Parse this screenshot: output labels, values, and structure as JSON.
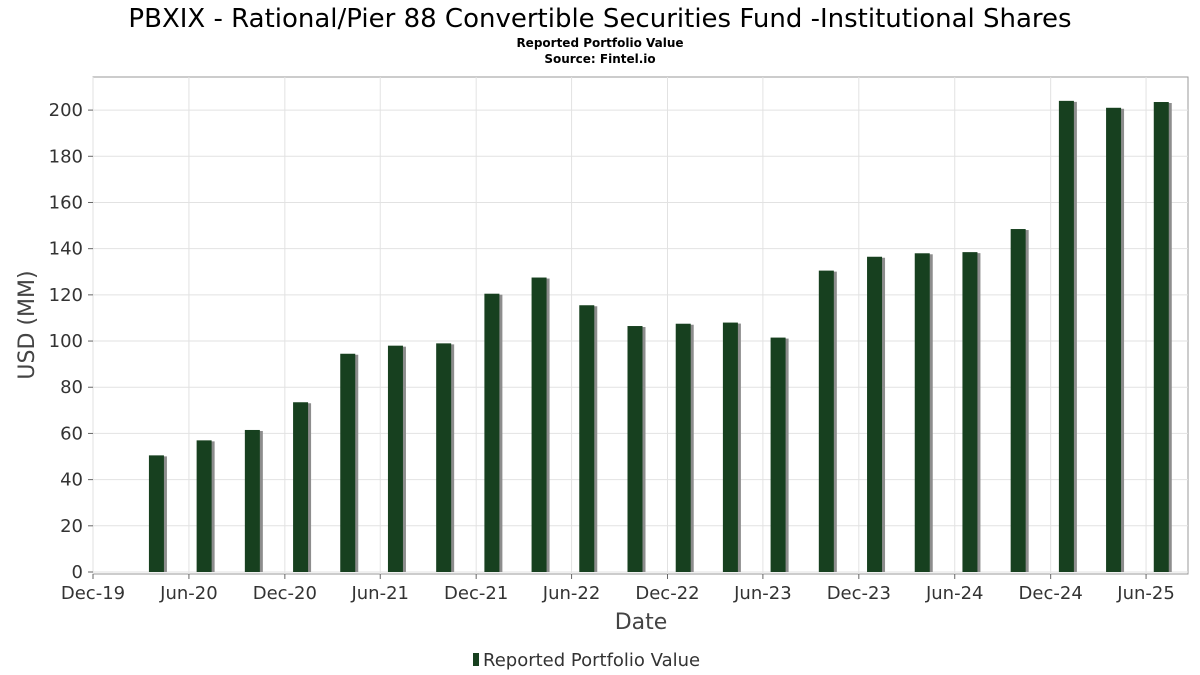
{
  "chart_data": {
    "type": "bar",
    "title": "PBXIX - Rational/Pier 88 Convertible Securities Fund -Institutional Shares",
    "subtitle": "Reported Portfolio Value",
    "source": "Source: Fintel.io",
    "xlabel": "Date",
    "ylabel": "USD (MM)",
    "ylim": [
      0,
      210
    ],
    "yticks": [
      0,
      20,
      40,
      60,
      80,
      100,
      120,
      140,
      160,
      180,
      200
    ],
    "xlim": [
      "2019-12-01",
      "2025-08-20"
    ],
    "xticks": [
      {
        "label": "Dec-19",
        "date": "2019-12-01"
      },
      {
        "label": "Jun-20",
        "date": "2020-06-01"
      },
      {
        "label": "Dec-20",
        "date": "2020-12-01"
      },
      {
        "label": "Jun-21",
        "date": "2021-06-01"
      },
      {
        "label": "Dec-21",
        "date": "2021-12-01"
      },
      {
        "label": "Jun-22",
        "date": "2022-06-01"
      },
      {
        "label": "Dec-22",
        "date": "2022-12-01"
      },
      {
        "label": "Jun-23",
        "date": "2023-06-01"
      },
      {
        "label": "Dec-23",
        "date": "2023-12-01"
      },
      {
        "label": "Jun-24",
        "date": "2024-06-01"
      },
      {
        "label": "Dec-24",
        "date": "2024-12-01"
      },
      {
        "label": "Jun-25",
        "date": "2025-06-01"
      }
    ],
    "grid": true,
    "legend_position": "bottom-center",
    "series": [
      {
        "name": "Reported Portfolio Value",
        "color": "#17401f",
        "points": [
          {
            "date": "2020-03-31",
            "value": 50.5
          },
          {
            "date": "2020-06-30",
            "value": 57.0
          },
          {
            "date": "2020-09-30",
            "value": 61.5
          },
          {
            "date": "2020-12-31",
            "value": 73.5
          },
          {
            "date": "2021-03-31",
            "value": 94.5
          },
          {
            "date": "2021-06-30",
            "value": 98.0
          },
          {
            "date": "2021-09-30",
            "value": 99.0
          },
          {
            "date": "2021-12-31",
            "value": 120.5
          },
          {
            "date": "2022-03-31",
            "value": 127.5
          },
          {
            "date": "2022-06-30",
            "value": 115.5
          },
          {
            "date": "2022-09-30",
            "value": 106.5
          },
          {
            "date": "2022-12-31",
            "value": 107.5
          },
          {
            "date": "2023-03-31",
            "value": 108.0
          },
          {
            "date": "2023-06-30",
            "value": 101.5
          },
          {
            "date": "2023-09-30",
            "value": 130.5
          },
          {
            "date": "2023-12-31",
            "value": 136.5
          },
          {
            "date": "2024-03-31",
            "value": 138.0
          },
          {
            "date": "2024-06-30",
            "value": 138.5
          },
          {
            "date": "2024-09-30",
            "value": 148.5
          },
          {
            "date": "2024-12-31",
            "value": 204.0
          },
          {
            "date": "2025-03-31",
            "value": 201.0
          },
          {
            "date": "2025-06-30",
            "value": 203.5
          }
        ]
      }
    ]
  }
}
